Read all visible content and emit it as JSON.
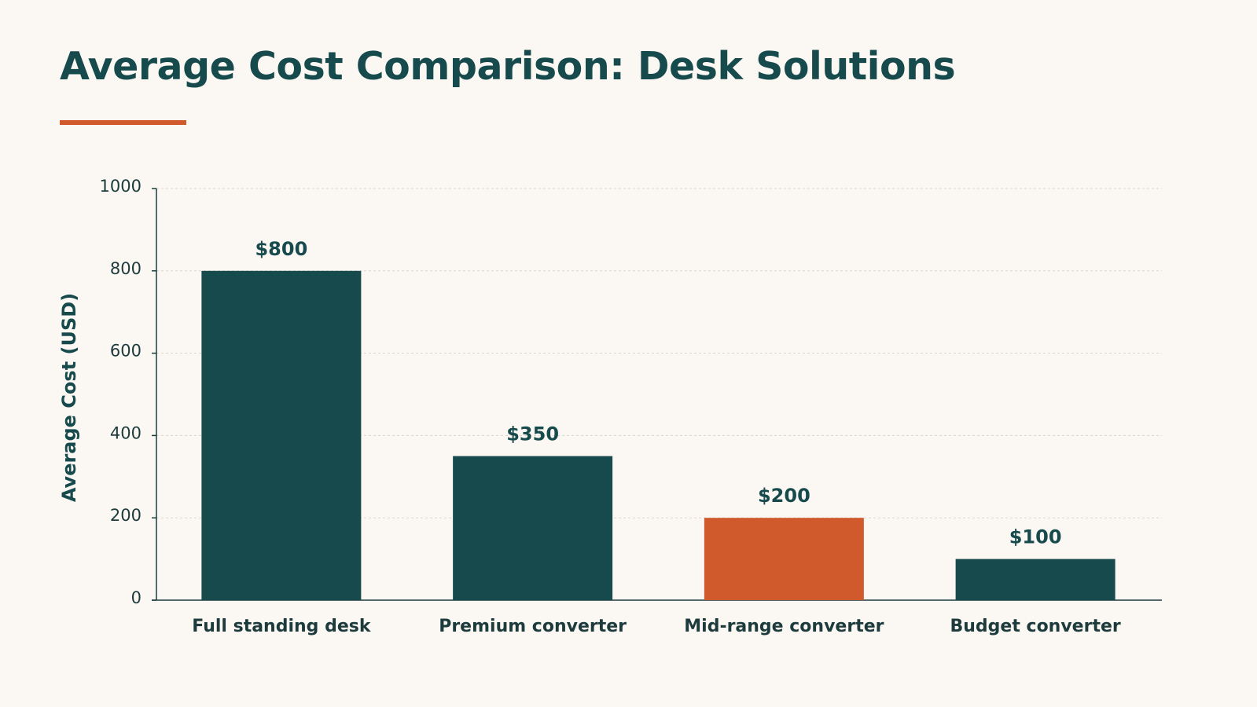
{
  "chart_data": {
    "type": "bar",
    "title": "Average Cost Comparison: Desk Solutions",
    "xlabel": "",
    "ylabel": "Average Cost (USD)",
    "ylim": [
      0,
      1000
    ],
    "yticks": [
      0,
      200,
      400,
      600,
      800,
      1000
    ],
    "categories": [
      "Full standing desk",
      "Premium converter",
      "Mid-range converter",
      "Budget converter"
    ],
    "values": [
      800,
      350,
      200,
      100
    ],
    "value_labels": [
      "$800",
      "$350",
      "$200",
      "$100"
    ],
    "bar_colors": [
      "#174a4c",
      "#174a4c",
      "#d05a2c",
      "#174a4c"
    ],
    "grid": true,
    "legend": "none"
  },
  "colors": {
    "background": "#fbf8f3",
    "primary": "#174a4c",
    "accent": "#d05a2c",
    "grid": "#d9d6cf"
  }
}
